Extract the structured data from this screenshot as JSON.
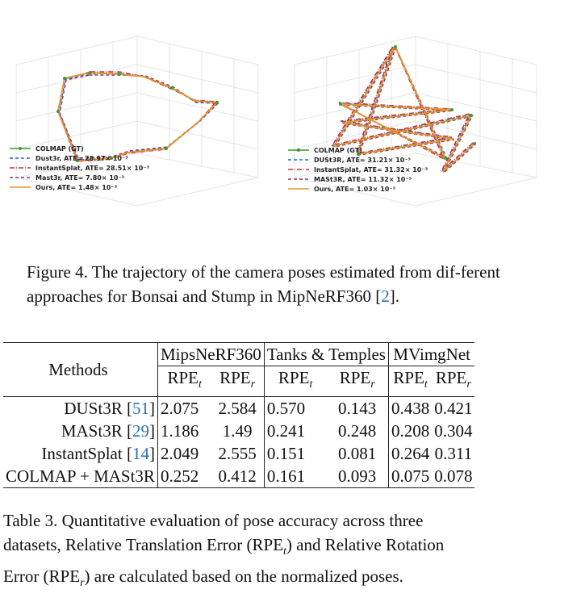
{
  "figure": {
    "left_legend": [
      {
        "label": "COLMAP (GT)",
        "color": "#3a9a2e",
        "dash": ""
      },
      {
        "label": "Dust3r, ATE= 28.97× 10⁻³",
        "color": "#2f5fd0",
        "dash": "4,3"
      },
      {
        "label": "InstantSplat, ATE= 28.51× 10⁻³",
        "color": "#c0303a",
        "dash": "6,2,1,2"
      },
      {
        "label": "Mast3r, ATE= 7.80× 10⁻³",
        "color": "#7a3a7a",
        "dash": "4,3"
      },
      {
        "label": "Ours, ATE= 1.48× 10⁻³",
        "color": "#e8922a",
        "dash": ""
      }
    ],
    "right_legend": [
      {
        "label": "COLMAP (GT)",
        "color": "#3a9a2e",
        "dash": ""
      },
      {
        "label": "DUSt3R, ATE= 31.21× 10⁻³",
        "color": "#2f5fd0",
        "dash": "4,3"
      },
      {
        "label": "InstantSplat, ATE= 31.32× 10⁻³",
        "color": "#c0303a",
        "dash": "6,2,1,2"
      },
      {
        "label": "MASt3R, ATE= 11.32× 10⁻³",
        "color": "#7a3a7a",
        "dash": "4,3"
      },
      {
        "label": "Ours, ATE= 1.03× 10⁻³",
        "color": "#e8922a",
        "dash": ""
      }
    ]
  },
  "figure_caption": {
    "prefix": "Figure 4.  The trajectory of the camera poses estimated from dif-ferent approaches for Bonsai and Stump in MipNeRF360 [",
    "ref": "2",
    "suffix": "]."
  },
  "table": {
    "methods_header": "Methods",
    "groups": [
      "MipsNeRF360",
      "Tanks & Temples",
      "MVimgNet"
    ],
    "subheaders": [
      {
        "base": "RPE",
        "sub": "t"
      },
      {
        "base": "RPE",
        "sub": "r"
      },
      {
        "base": "RPE",
        "sub": "t"
      },
      {
        "base": "RPE",
        "sub": "r"
      },
      {
        "base": "RPE",
        "sub": "t"
      },
      {
        "base": "RPE",
        "sub": "r"
      }
    ],
    "rows": [
      {
        "name": "DUSt3R [",
        "ref": "51",
        "close": "]",
        "vals": [
          "2.075",
          "2.584",
          "0.570",
          "0.143",
          "0.438",
          "0.421"
        ]
      },
      {
        "name": "MASt3R [",
        "ref": "29",
        "close": "]",
        "vals": [
          "1.186",
          "1.49",
          "0.241",
          "0.248",
          "0.208",
          "0.304"
        ]
      },
      {
        "name": "InstantSplat [",
        "ref": "14",
        "close": "]",
        "vals": [
          "2.049",
          "2.555",
          "0.151",
          "0.081",
          "0.264",
          "0.311"
        ]
      },
      {
        "name": "COLMAP + MASt3R",
        "ref": "",
        "close": "",
        "vals": [
          "0.252",
          "0.412",
          "0.161",
          "0.093",
          "0.075",
          "0.078"
        ]
      }
    ]
  },
  "table_caption": {
    "line1": "Table 3.  Quantitative evaluation of pose accuracy across three",
    "line2a": "datasets, Relative Translation Error (RPE",
    "line2sub": "t",
    "line2b": ") and Relative Rotation",
    "line3a": "Error (RPE",
    "line3sub": "r",
    "line3b": ") are calculated based on the normalized poses."
  }
}
